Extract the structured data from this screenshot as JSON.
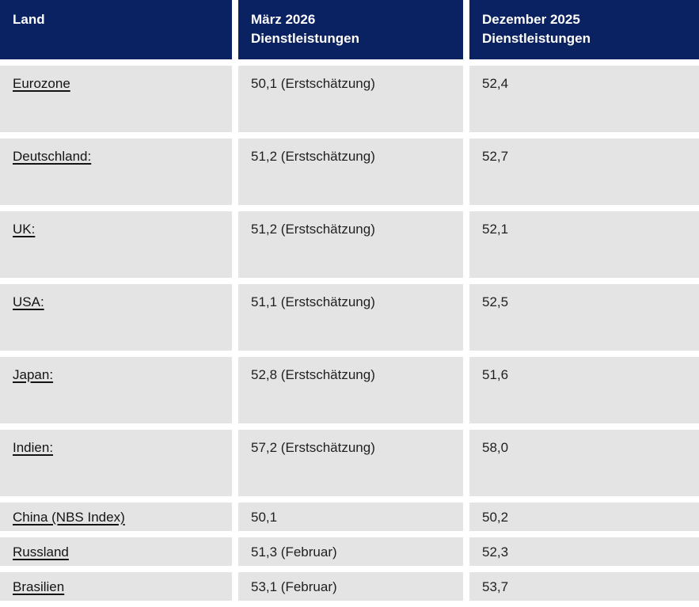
{
  "colors": {
    "header_bg": "#0a2162",
    "header_text": "#ffffff",
    "row_bg": "#e5e4e4",
    "body_text": "#1f1f1f",
    "gap": "#ffffff"
  },
  "header": {
    "col_land": "Land",
    "col_maerz": "März 2026\nDienstleistungen",
    "col_dez": "Dezember 2025\nDienstleistungen"
  },
  "rows": [
    {
      "land": "Eurozone",
      "maerz": "50,1 (Erstschätzung)",
      "dez": "52,4"
    },
    {
      "land": "Deutschland:",
      "maerz": "51,2 (Erstschätzung)",
      "dez": "52,7"
    },
    {
      "land": "UK:",
      "maerz": "51,2 (Erstschätzung)",
      "dez": "52,1"
    },
    {
      "land": "USA:",
      "maerz": "51,1 (Erstschätzung)",
      "dez": "52,5"
    },
    {
      "land": "Japan:",
      "maerz": "52,8 (Erstschätzung)",
      "dez": "51,6"
    },
    {
      "land": "Indien:",
      "maerz": "57,2 (Erstschätzung)",
      "dez": "58,0"
    },
    {
      "land": "China (NBS Index)",
      "maerz": "50,1",
      "dez": "50,2"
    },
    {
      "land": "Russland",
      "maerz": "51,3 (Februar)",
      "dez": "52,3"
    },
    {
      "land": "Brasilien",
      "maerz": "53,1 (Februar)",
      "dez": "53,7"
    }
  ],
  "chart_data": {
    "type": "table",
    "title": "PMI Dienstleistungen",
    "columns": [
      "Land",
      "März 2026 Dienstleistungen",
      "Dezember 2025 Dienstleistungen"
    ],
    "categories": [
      "Eurozone",
      "Deutschland",
      "UK",
      "USA",
      "Japan",
      "Indien",
      "China (NBS Index)",
      "Russland",
      "Brasilien"
    ],
    "series": [
      {
        "name": "März 2026 Dienstleistungen",
        "values": [
          50.1,
          51.2,
          51.2,
          51.1,
          52.8,
          57.2,
          50.1,
          51.3,
          53.1
        ]
      },
      {
        "name": "Dezember 2025 Dienstleistungen",
        "values": [
          52.4,
          52.7,
          52.1,
          52.5,
          51.6,
          58.0,
          50.2,
          52.3,
          53.7
        ]
      }
    ],
    "notes": {
      "maerz_2026": [
        "Erstschätzung",
        "Erstschätzung",
        "Erstschätzung",
        "Erstschätzung",
        "Erstschätzung",
        "Erstschätzung",
        "",
        "Februar",
        "Februar"
      ]
    },
    "decimal_separator": ","
  }
}
